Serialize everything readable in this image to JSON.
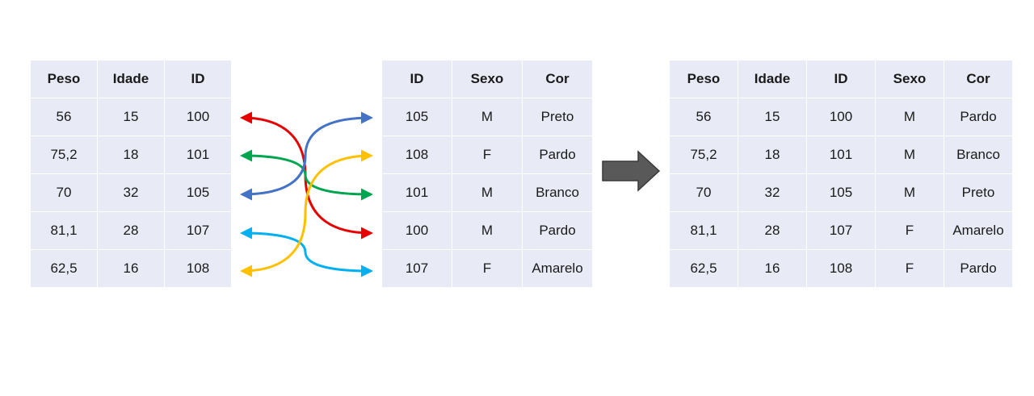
{
  "left_table": {
    "headers": [
      "Peso",
      "Idade",
      "ID"
    ],
    "rows": [
      [
        "56",
        "15",
        "100"
      ],
      [
        "75,2",
        "18",
        "101"
      ],
      [
        "70",
        "32",
        "105"
      ],
      [
        "81,1",
        "28",
        "107"
      ],
      [
        "62,5",
        "16",
        "108"
      ]
    ]
  },
  "middle_table": {
    "headers": [
      "ID",
      "Sexo",
      "Cor"
    ],
    "rows": [
      [
        "105",
        "M",
        "Preto"
      ],
      [
        "108",
        "F",
        "Pardo"
      ],
      [
        "101",
        "M",
        "Branco"
      ],
      [
        "100",
        "M",
        "Pardo"
      ],
      [
        "107",
        "F",
        "Amarelo"
      ]
    ]
  },
  "result_table": {
    "headers": [
      "Peso",
      "Idade",
      "ID",
      "Sexo",
      "Cor"
    ],
    "rows": [
      [
        "56",
        "15",
        "100",
        "M",
        "Pardo"
      ],
      [
        "75,2",
        "18",
        "101",
        "M",
        "Branco"
      ],
      [
        "70",
        "32",
        "105",
        "M",
        "Preto"
      ],
      [
        "81,1",
        "28",
        "107",
        "F",
        "Amarelo"
      ],
      [
        "62,5",
        "16",
        "108",
        "F",
        "Pardo"
      ]
    ]
  },
  "connectors": [
    {
      "id": "100",
      "color": "#e60000"
    },
    {
      "id": "101",
      "color": "#00a64f"
    },
    {
      "id": "105",
      "color": "#4472c4"
    },
    {
      "id": "107",
      "color": "#00b0f0"
    },
    {
      "id": "108",
      "color": "#ffc000"
    }
  ],
  "arrow_color": "#595959"
}
